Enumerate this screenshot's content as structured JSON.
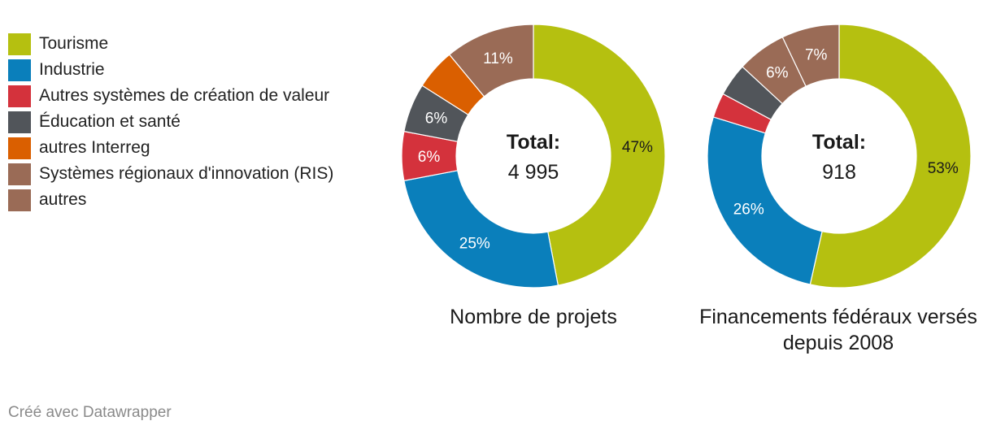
{
  "legend": [
    {
      "label": "Tourisme",
      "color": "#b5c010"
    },
    {
      "label": "Industrie",
      "color": "#0a7fbb"
    },
    {
      "label": "Autres systèmes de création de valeur",
      "color": "#d4323c"
    },
    {
      "label": "Éducation et santé",
      "color": "#51555a"
    },
    {
      "label": "autres Interreg",
      "color": "#da5f00"
    },
    {
      "label": "Systèmes régionaux d'innovation (RIS)",
      "color": "#9a6b56"
    },
    {
      "label": "autres",
      "color": "#9a6b56"
    }
  ],
  "chart_data": [
    {
      "type": "pie",
      "title": "Nombre de projets",
      "total_label": "Total:",
      "total_value": "4 995",
      "slices": [
        {
          "name": "Tourisme",
          "value": 47,
          "label": "47%",
          "color": "#b5c010"
        },
        {
          "name": "Industrie",
          "value": 25,
          "label": "25%",
          "color": "#0a7fbb"
        },
        {
          "name": "Autres systèmes de création de valeur",
          "value": 6,
          "label": "6%",
          "color": "#d4323c"
        },
        {
          "name": "Éducation et santé",
          "value": 6,
          "label": "6%",
          "color": "#51555a"
        },
        {
          "name": "autres Interreg",
          "value": 5,
          "label": "",
          "color": "#da5f00"
        },
        {
          "name": "Systèmes régionaux d'innovation (RIS)",
          "value": 0,
          "label": "",
          "color": "#9a6b56"
        },
        {
          "name": "autres",
          "value": 11,
          "label": "11%",
          "color": "#9a6b56"
        }
      ]
    },
    {
      "type": "pie",
      "title": "Financements fédéraux versés depuis 2008",
      "total_label": "Total:",
      "total_value": "918",
      "slices": [
        {
          "name": "Tourisme",
          "value": 53,
          "label": "53%",
          "color": "#b5c010"
        },
        {
          "name": "Industrie",
          "value": 26,
          "label": "26%",
          "color": "#0a7fbb"
        },
        {
          "name": "Autres systèmes de création de valeur",
          "value": 3,
          "label": "",
          "color": "#d4323c"
        },
        {
          "name": "Éducation et santé",
          "value": 4,
          "label": "",
          "color": "#51555a"
        },
        {
          "name": "autres Interreg",
          "value": 0,
          "label": "",
          "color": "#da5f00"
        },
        {
          "name": "Systèmes régionaux d'innovation (RIS)",
          "value": 6,
          "label": "6%",
          "color": "#9a6b56"
        },
        {
          "name": "autres",
          "value": 7,
          "label": "7%",
          "color": "#9a6b56"
        }
      ]
    }
  ],
  "footer": "Créé avec Datawrapper"
}
